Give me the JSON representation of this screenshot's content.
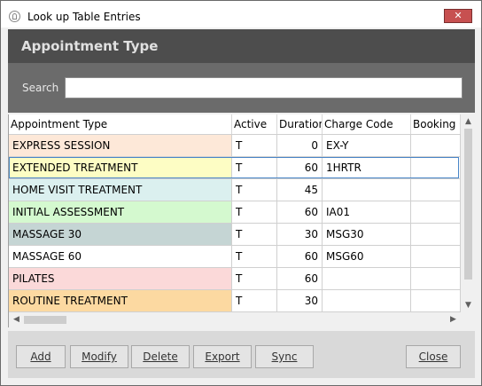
{
  "window": {
    "title": "Look up Table Entries",
    "close_glyph": "✕"
  },
  "header": {
    "title": "Appointment Type"
  },
  "search": {
    "label": "Search",
    "value": "",
    "placeholder": ""
  },
  "grid": {
    "columns": [
      "Appointment Type",
      "Active",
      "Duration",
      "Charge Code",
      "Booking C"
    ],
    "rows": [
      {
        "type": "EXPRESS SESSION",
        "active": "T",
        "duration": "0",
        "charge": "EX-Y",
        "booking": "",
        "color": "#fde8d8"
      },
      {
        "type": "EXTENDED TREATMENT",
        "active": "T",
        "duration": "60",
        "charge": "1HRTR",
        "booking": "",
        "color": "#fdfdc4"
      },
      {
        "type": "HOME VISIT TREATMENT",
        "active": "T",
        "duration": "45",
        "charge": "",
        "booking": "",
        "color": "#dbf0ef"
      },
      {
        "type": "INITIAL ASSESSMENT",
        "active": "T",
        "duration": "60",
        "charge": "IA01",
        "booking": "",
        "color": "#d4f9cf"
      },
      {
        "type": "MASSAGE 30",
        "active": "T",
        "duration": "30",
        "charge": "MSG30",
        "booking": "",
        "color": "#c5d5d4"
      },
      {
        "type": "MASSAGE 60",
        "active": "T",
        "duration": "60",
        "charge": "MSG60",
        "booking": "",
        "color": "#ffffff"
      },
      {
        "type": "PILATES",
        "active": "T",
        "duration": "60",
        "charge": "",
        "booking": "",
        "color": "#fbd9d9"
      },
      {
        "type": "ROUTINE TREATMENT",
        "active": "T",
        "duration": "30",
        "charge": "",
        "booking": "",
        "color": "#fcd9a1"
      }
    ],
    "selected_index": 1
  },
  "buttons": {
    "add": "Add",
    "modify": "Modify",
    "delete": "Delete",
    "export": "Export",
    "sync": "Sync",
    "close": "Close"
  },
  "colors": {
    "header_band": "#4d4d4d",
    "search_band": "#6b6b6b",
    "close_button": "#c75050",
    "selection_border": "#4a86c8"
  }
}
